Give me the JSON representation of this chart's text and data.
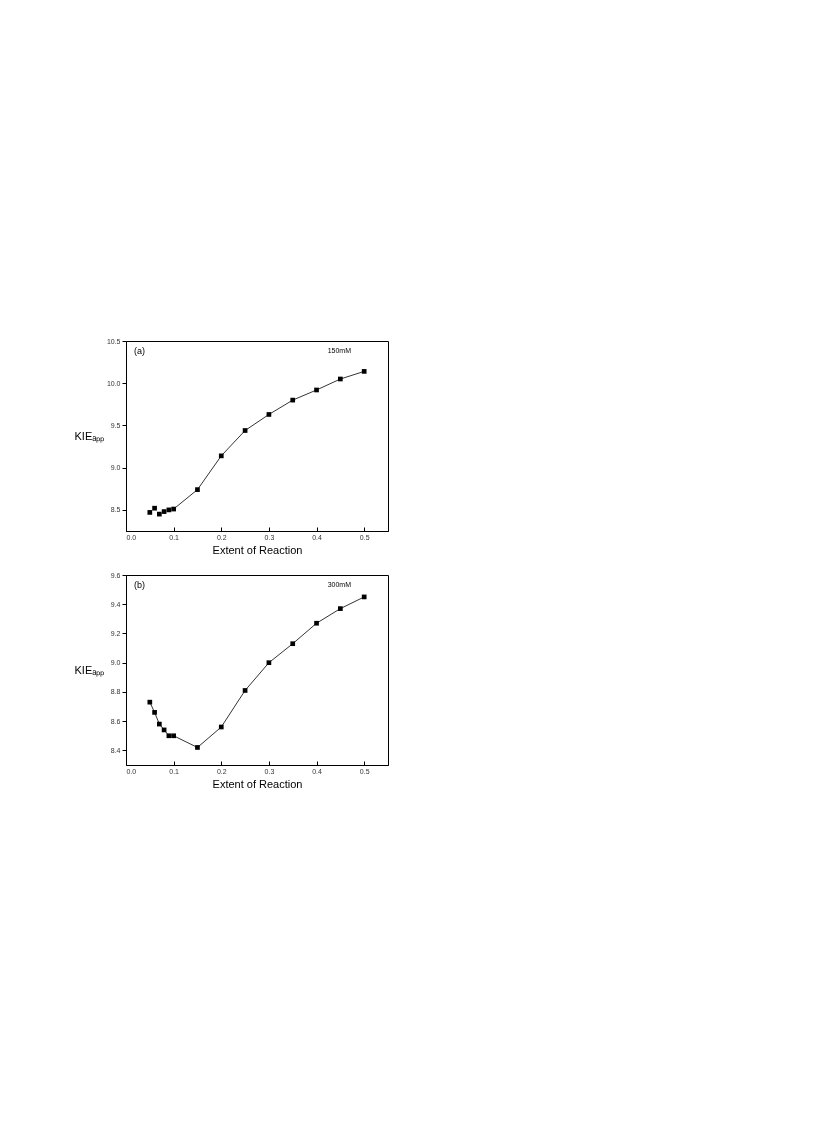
{
  "chart_data": [
    {
      "type": "line",
      "xlabel": "Extent of Reaction",
      "ylabel": "KIEₐₚₚ",
      "annotations": [
        "(a)",
        "150mM"
      ],
      "marker": "square",
      "grid": false,
      "xlim": [
        0,
        0.55
      ],
      "xticks": [
        {
          "value": 0,
          "label": "0.0"
        },
        0.1,
        0.2,
        0.3,
        0.4,
        0.5
      ],
      "ylim": [
        8.25,
        10.5
      ],
      "yticks": [
        {
          "value": 8.5,
          "label": "8.5"
        },
        {
          "value": 9,
          "label": "9.0"
        },
        9.5,
        {
          "value": 10,
          "label": "10.0"
        },
        10.5
      ],
      "series": [
        {
          "type": "scatter",
          "color": "#000000",
          "x": [
            0.05,
            0.06,
            0.07,
            0.08,
            0.09
          ],
          "values": [
            8.47,
            8.52,
            8.45,
            8.48,
            8.5
          ]
        },
        {
          "type": "line",
          "color": "#000000",
          "x": [
            0.1,
            0.15,
            0.2,
            0.25,
            0.3,
            0.35,
            0.4,
            0.45,
            0.5
          ],
          "values": [
            8.51,
            8.74,
            9.14,
            9.44,
            9.63,
            9.8,
            9.92,
            10.05,
            10.14
          ]
        }
      ]
    },
    {
      "type": "line",
      "xlabel": "Extent of Reaction",
      "ylabel": "KIEₐₚₚ",
      "annotations": [
        "(b)",
        "300mM"
      ],
      "marker": "square",
      "grid": false,
      "xlim": [
        0,
        0.55
      ],
      "xticks": [
        {
          "value": 0,
          "label": "0.0"
        },
        0.1,
        0.2,
        0.3,
        0.4,
        0.5
      ],
      "ylim": [
        8.3,
        9.6
      ],
      "yticks": [
        8.4,
        8.6,
        8.8,
        {
          "value": 9,
          "label": "9.0"
        },
        9.2,
        9.4,
        9.6
      ],
      "series": [
        {
          "type": "line",
          "color": "#000000",
          "x": [
            0.05,
            0.06,
            0.07,
            0.08,
            0.09,
            0.1,
            0.15,
            0.2,
            0.25,
            0.3,
            0.35,
            0.4,
            0.45,
            0.5
          ],
          "values": [
            8.73,
            8.66,
            8.58,
            8.54,
            8.5,
            8.5,
            8.42,
            8.56,
            8.81,
            9.0,
            9.13,
            9.27,
            9.37,
            9.45
          ]
        }
      ]
    }
  ]
}
